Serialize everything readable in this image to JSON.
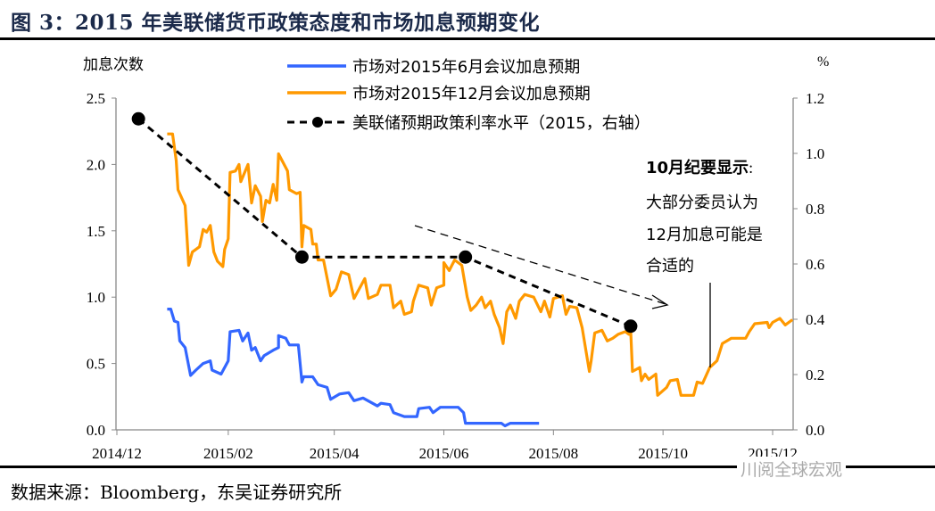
{
  "header": {
    "title": "图 3：2015 年美联储货币政策态度和市场加息预期变化"
  },
  "footer": {
    "source": "数据来源：Bloomberg，东吴证券研究所",
    "watermark": "川阅全球宏观"
  },
  "chart_data": {
    "type": "line",
    "title": "2015 年美联储货币政策态度和市场加息预期变化",
    "x_unit": "days since 2014-12-01",
    "xlim": [
      0,
      377
    ],
    "x_ticks": [
      {
        "day": 0,
        "label": "2014/12"
      },
      {
        "day": 62,
        "label": "2015/02"
      },
      {
        "day": 121,
        "label": "2015/04"
      },
      {
        "day": 182,
        "label": "2015/06"
      },
      {
        "day": 243,
        "label": "2015/08"
      },
      {
        "day": 304,
        "label": "2015/10"
      },
      {
        "day": 365,
        "label": "2015/12"
      }
    ],
    "ylabel_left": "加息次数",
    "ylim_left": [
      0,
      2.5
    ],
    "y_ticks_left": [
      "0.0",
      "0.5",
      "1.0",
      "1.5",
      "2.0",
      "2.5"
    ],
    "ylabel_right": "%",
    "ylim_right": [
      0,
      1.2
    ],
    "y_ticks_right": [
      "0.0",
      "0.2",
      "0.4",
      "0.6",
      "0.8",
      "1.0",
      "1.2"
    ],
    "grid": false,
    "legend_position": "top-center",
    "series": [
      {
        "name": "市场对2015年6月会议加息预期",
        "color": "#3366ff",
        "axis": "left",
        "points": [
          [
            28,
            0.91
          ],
          [
            30,
            0.91
          ],
          [
            32,
            0.82
          ],
          [
            34,
            0.81
          ],
          [
            35,
            0.67
          ],
          [
            38,
            0.62
          ],
          [
            41,
            0.41
          ],
          [
            44,
            0.45
          ],
          [
            48,
            0.5
          ],
          [
            52,
            0.52
          ],
          [
            53,
            0.45
          ],
          [
            58,
            0.42
          ],
          [
            62,
            0.52
          ],
          [
            63,
            0.74
          ],
          [
            68,
            0.75
          ],
          [
            70,
            0.67
          ],
          [
            73,
            0.73
          ],
          [
            75,
            0.6
          ],
          [
            77,
            0.62
          ],
          [
            80,
            0.52
          ],
          [
            82,
            0.56
          ],
          [
            87,
            0.6
          ],
          [
            90,
            0.62
          ],
          [
            90,
            0.71
          ],
          [
            94,
            0.69
          ],
          [
            96,
            0.64
          ],
          [
            101,
            0.64
          ],
          [
            103,
            0.36
          ],
          [
            104,
            0.4
          ],
          [
            109,
            0.4
          ],
          [
            112,
            0.34
          ],
          [
            117,
            0.32
          ],
          [
            119,
            0.23
          ],
          [
            124,
            0.27
          ],
          [
            129,
            0.28
          ],
          [
            132,
            0.22
          ],
          [
            137,
            0.24
          ],
          [
            145,
            0.18
          ],
          [
            147,
            0.2
          ],
          [
            152,
            0.19
          ],
          [
            154,
            0.13
          ],
          [
            160,
            0.1
          ],
          [
            167,
            0.1
          ],
          [
            168,
            0.16
          ],
          [
            174,
            0.17
          ],
          [
            176,
            0.13
          ],
          [
            180,
            0.17
          ],
          [
            190,
            0.17
          ],
          [
            193,
            0.13
          ],
          [
            194,
            0.05
          ],
          [
            214,
            0.05
          ],
          [
            216,
            0.03
          ],
          [
            219,
            0.05
          ],
          [
            235,
            0.05
          ]
        ]
      },
      {
        "name": "市场对2015年12月会议加息预期",
        "color": "#ff9900",
        "axis": "left",
        "points": [
          [
            28,
            2.23
          ],
          [
            31,
            2.23
          ],
          [
            33,
            2.03
          ],
          [
            34,
            1.81
          ],
          [
            38,
            1.69
          ],
          [
            40,
            1.24
          ],
          [
            42,
            1.34
          ],
          [
            46,
            1.38
          ],
          [
            48,
            1.51
          ],
          [
            50,
            1.49
          ],
          [
            52,
            1.54
          ],
          [
            54,
            1.34
          ],
          [
            56,
            1.27
          ],
          [
            59,
            1.23
          ],
          [
            60,
            1.36
          ],
          [
            62,
            1.44
          ],
          [
            63,
            1.94
          ],
          [
            66,
            1.95
          ],
          [
            68,
            2.0
          ],
          [
            69,
            1.87
          ],
          [
            73,
            2.0
          ],
          [
            75,
            1.71
          ],
          [
            77,
            1.84
          ],
          [
            80,
            1.76
          ],
          [
            81,
            1.57
          ],
          [
            83,
            1.73
          ],
          [
            85,
            1.71
          ],
          [
            87,
            1.85
          ],
          [
            89,
            1.73
          ],
          [
            90,
            2.08
          ],
          [
            95,
            1.95
          ],
          [
            96,
            1.81
          ],
          [
            100,
            1.78
          ],
          [
            102,
            1.79
          ],
          [
            103,
            1.38
          ],
          [
            104,
            1.54
          ],
          [
            108,
            1.51
          ],
          [
            109,
            1.4
          ],
          [
            111,
            1.4
          ],
          [
            112,
            1.28
          ],
          [
            115,
            1.28
          ],
          [
            119,
            1.01
          ],
          [
            122,
            1.06
          ],
          [
            125,
            1.19
          ],
          [
            129,
            1.17
          ],
          [
            132,
            0.99
          ],
          [
            138,
            1.14
          ],
          [
            140,
            0.99
          ],
          [
            145,
            1.02
          ],
          [
            147,
            1.09
          ],
          [
            152,
            1.09
          ],
          [
            154,
            0.92
          ],
          [
            158,
            0.97
          ],
          [
            160,
            0.87
          ],
          [
            164,
            0.89
          ],
          [
            165,
            0.97
          ],
          [
            168,
            1.09
          ],
          [
            173,
            1.07
          ],
          [
            175,
            0.94
          ],
          [
            178,
            1.07
          ],
          [
            182,
            1.09
          ],
          [
            182,
            1.26
          ],
          [
            185,
            1.2
          ],
          [
            188,
            1.28
          ],
          [
            192,
            1.24
          ],
          [
            195,
            1.0
          ],
          [
            197,
            0.9
          ],
          [
            200,
            0.94
          ],
          [
            203,
            1.0
          ],
          [
            205,
            0.92
          ],
          [
            208,
            0.97
          ],
          [
            210,
            0.87
          ],
          [
            213,
            0.77
          ],
          [
            215,
            0.65
          ],
          [
            217,
            0.89
          ],
          [
            219,
            0.94
          ],
          [
            222,
            0.84
          ],
          [
            224,
            0.97
          ],
          [
            227,
            1.02
          ],
          [
            232,
            1.0
          ],
          [
            236,
            0.89
          ],
          [
            238,
            0.97
          ],
          [
            241,
            0.85
          ],
          [
            243,
            0.99
          ],
          [
            248,
            1.01
          ],
          [
            250,
            0.87
          ],
          [
            252,
            0.93
          ],
          [
            256,
            0.92
          ],
          [
            259,
            0.77
          ],
          [
            263,
            0.44
          ],
          [
            264,
            0.52
          ],
          [
            266,
            0.73
          ],
          [
            270,
            0.75
          ],
          [
            273,
            0.67
          ],
          [
            276,
            0.69
          ],
          [
            279,
            0.72
          ],
          [
            283,
            0.74
          ],
          [
            285,
            0.72
          ],
          [
            286,
            0.75
          ],
          [
            287,
            0.44
          ],
          [
            291,
            0.47
          ],
          [
            292,
            0.37
          ],
          [
            294,
            0.42
          ],
          [
            296,
            0.38
          ],
          [
            300,
            0.42
          ],
          [
            301,
            0.26
          ],
          [
            306,
            0.32
          ],
          [
            308,
            0.37
          ],
          [
            312,
            0.38
          ],
          [
            314,
            0.26
          ],
          [
            321,
            0.26
          ],
          [
            323,
            0.36
          ],
          [
            326,
            0.35
          ],
          [
            330,
            0.47
          ],
          [
            334,
            0.52
          ],
          [
            337,
            0.65
          ],
          [
            342,
            0.69
          ],
          [
            350,
            0.69
          ],
          [
            352,
            0.74
          ],
          [
            355,
            0.8
          ],
          [
            362,
            0.81
          ],
          [
            363,
            0.77
          ],
          [
            365,
            0.81
          ],
          [
            369,
            0.84
          ],
          [
            372,
            0.79
          ],
          [
            376,
            0.83
          ]
        ]
      },
      {
        "name": "美联储预期政策利率水平（2015，右轴）",
        "color": "#000000",
        "axis": "right",
        "style": "dashed-markers",
        "points": [
          [
            12,
            1.125
          ],
          [
            103,
            0.625
          ],
          [
            194,
            0.625
          ],
          [
            286,
            0.375
          ]
        ]
      }
    ],
    "annotation": {
      "heading": "10月纪要显示",
      "colon": ":",
      "lines": [
        "大部分委员认为",
        "12月加息可能是",
        "合适的"
      ]
    }
  }
}
